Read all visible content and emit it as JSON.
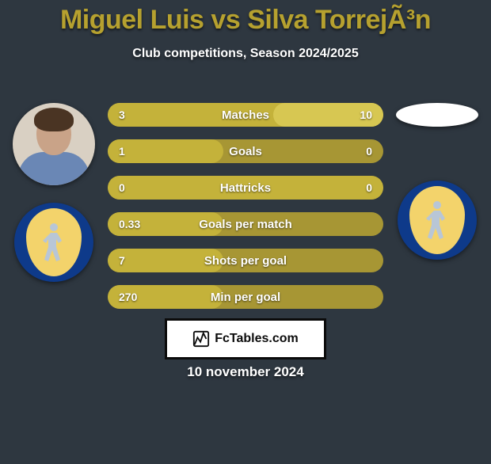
{
  "title": {
    "player1": "Miguel Luis",
    "vs": "vs",
    "player2": "Silva TorrejÃ³n",
    "color": "#b6a12f"
  },
  "subtitle": "Club competitions, Season 2024/2025",
  "background_color": "#2e3740",
  "bar_colors": {
    "track": "#a79634",
    "fill": "#c4b23a",
    "highlight": "#d7c752"
  },
  "bars": [
    {
      "label": "Matches",
      "left": "3",
      "right": "10",
      "fill_pct": 100,
      "has_highlight": true
    },
    {
      "label": "Goals",
      "left": "1",
      "right": "0",
      "fill_pct": 42,
      "has_highlight": false
    },
    {
      "label": "Hattricks",
      "left": "0",
      "right": "0",
      "fill_pct": 100,
      "has_highlight": false
    },
    {
      "label": "Goals per match",
      "left": "0.33",
      "right": "",
      "fill_pct": 42,
      "has_highlight": false
    },
    {
      "label": "Shots per goal",
      "left": "7",
      "right": "",
      "fill_pct": 42,
      "has_highlight": false
    },
    {
      "label": "Min per goal",
      "left": "270",
      "right": "",
      "fill_pct": 42,
      "has_highlight": false
    }
  ],
  "club_badge": {
    "outer_color": "#0e3a8a",
    "shield_color": "#f3d36b",
    "figure_color": "#b8c6d6"
  },
  "footer": {
    "logo_label": "FcTables",
    "domain": ".com"
  },
  "date": "10 november 2024"
}
